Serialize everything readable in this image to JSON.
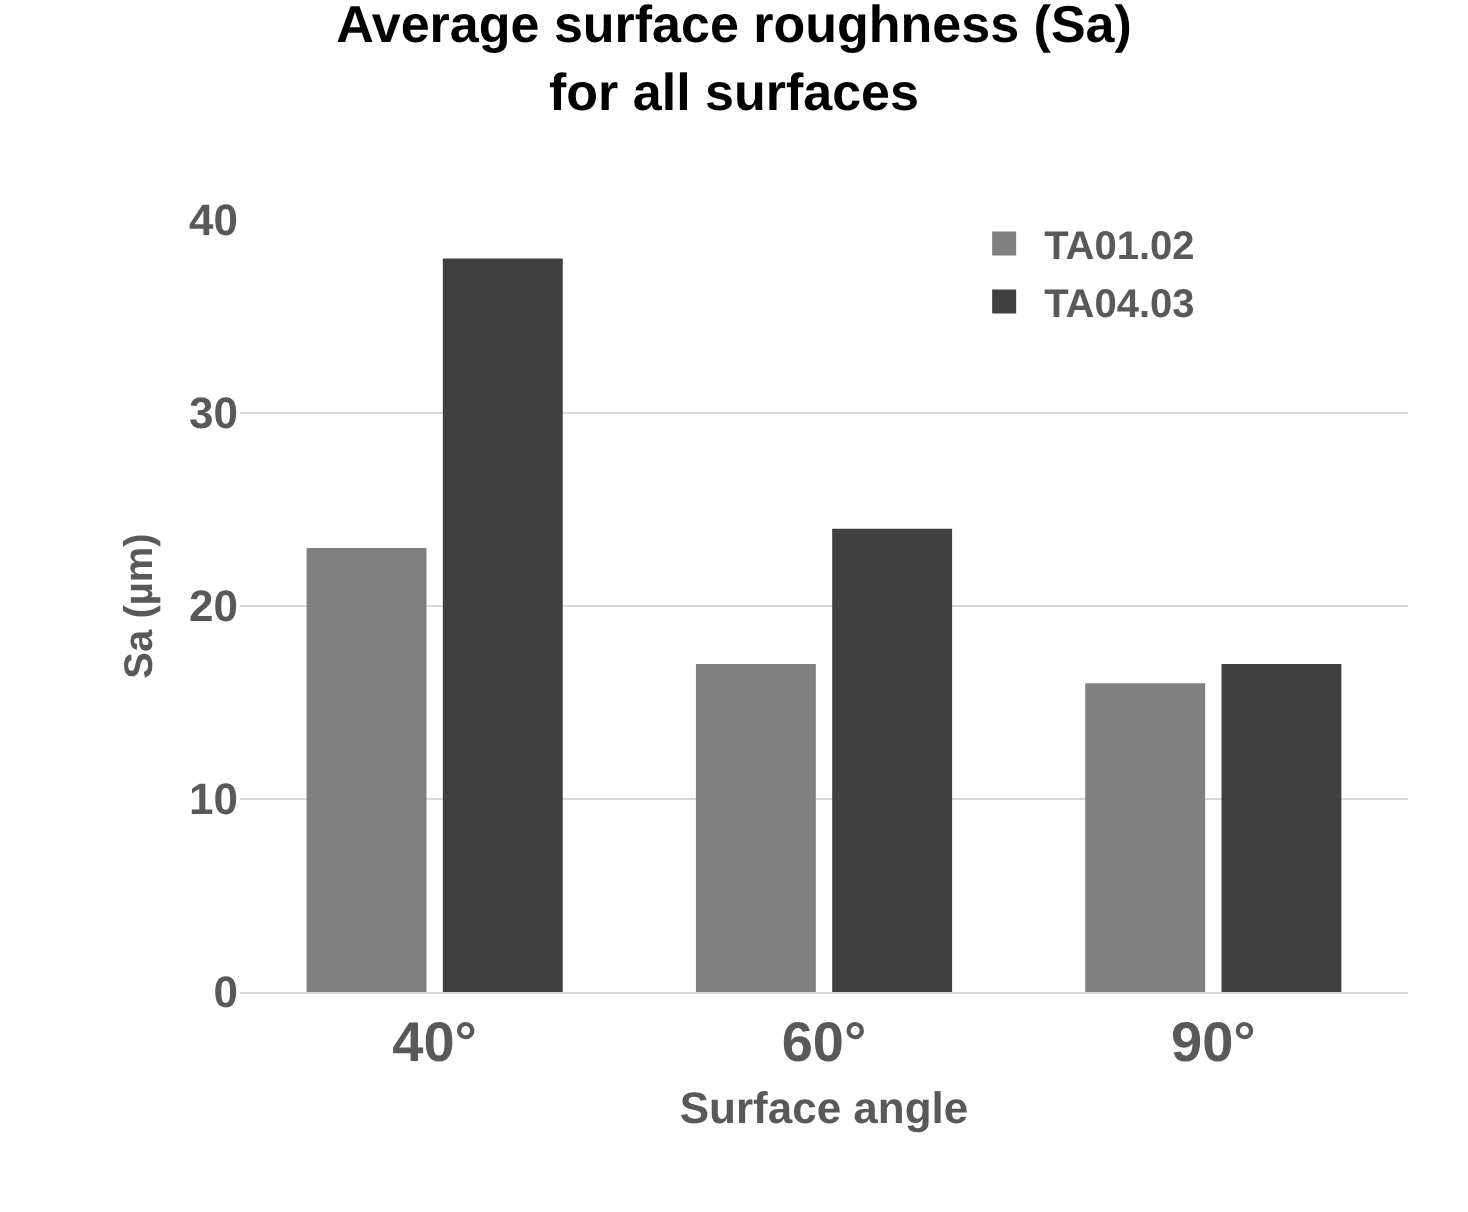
{
  "chart_data": {
    "type": "bar",
    "title": "Average surface roughness (Sa) for all surfaces",
    "xlabel": "Surface angle",
    "ylabel": "Sa (µm)",
    "categories": [
      "40°",
      "60°",
      "90°"
    ],
    "series": [
      {
        "name": "TA01.02",
        "color": "#808080",
        "values": [
          23,
          17,
          16
        ]
      },
      {
        "name": "TA04.03",
        "color": "#404040",
        "values": [
          38,
          24,
          17
        ]
      }
    ],
    "ylim": [
      0,
      40
    ],
    "yticks": [
      0,
      10,
      20,
      30,
      40
    ],
    "grid": "y",
    "legend": "top right"
  }
}
